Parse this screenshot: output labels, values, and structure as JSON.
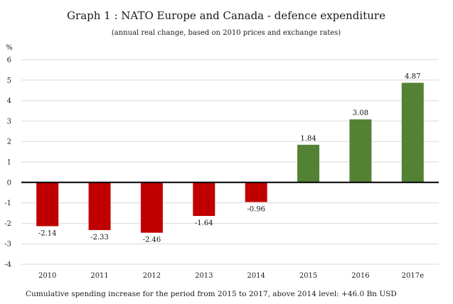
{
  "chart_data": {
    "type": "bar",
    "title": "Graph 1 : NATO Europe and Canada - defence expenditure",
    "subtitle": "(annual real change, based on 2010 prices and exchange rates)",
    "ylabel": "%",
    "categories": [
      "2010",
      "2011",
      "2012",
      "2013",
      "2014",
      "2015",
      "2016",
      "2017e"
    ],
    "values": [
      -2.14,
      -2.33,
      -2.46,
      -1.64,
      -0.96,
      1.84,
      3.08,
      4.87
    ],
    "value_labels": [
      "-2.14",
      "-2.33",
      "-2.46",
      "-1.64",
      "-0.96",
      "1.84",
      "3.08",
      "4.87"
    ],
    "ylim": [
      -4,
      6
    ],
    "yticks": [
      "-4",
      "-3",
      "-2",
      "-1",
      "0",
      "1",
      "2",
      "3",
      "4",
      "5",
      "6"
    ],
    "grid": true,
    "legend": "none",
    "colors": {
      "negative": "#c00000",
      "positive": "#548235"
    },
    "footnote": "Cumulative spending increase for the period from 2015 to 2017, above 2014 level: +46.0 Bn USD"
  }
}
